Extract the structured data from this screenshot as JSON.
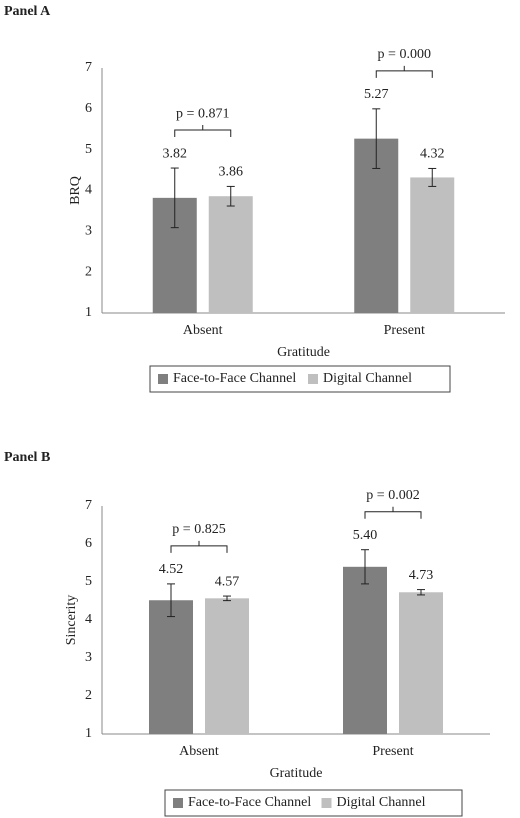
{
  "chart_data": [
    {
      "type": "bar",
      "title": "Panel A",
      "x_label": "Gratitude",
      "y_label": "BRQ",
      "categories": [
        "Absent",
        "Present"
      ],
      "series": [
        {
          "name": "Face-to-Face Channel",
          "color": "#7f7f7f",
          "values": [
            3.82,
            5.27
          ],
          "value_labels": [
            "3.82",
            "5.27"
          ],
          "errors": [
            0.73,
            0.73
          ]
        },
        {
          "name": "Digital Channel",
          "color": "#bfbfbf",
          "values": [
            3.86,
            4.32
          ],
          "value_labels": [
            "3.86",
            "4.32"
          ],
          "errors": [
            0.24,
            0.22
          ]
        }
      ],
      "annotations": [
        "p = 0.871",
        "p = 0.000"
      ],
      "ylim": [
        1,
        7
      ],
      "yticks": [
        1,
        2,
        3,
        4,
        5,
        6,
        7
      ],
      "grid": false
    },
    {
      "type": "bar",
      "title": "Panel B",
      "x_label": "Gratitude",
      "y_label": "Sincerity",
      "categories": [
        "Absent",
        "Present"
      ],
      "series": [
        {
          "name": "Face-to-Face Channel",
          "color": "#7f7f7f",
          "values": [
            4.52,
            5.4
          ],
          "value_labels": [
            "4.52",
            "5.40"
          ],
          "errors": [
            0.43,
            0.45
          ]
        },
        {
          "name": "Digital Channel",
          "color": "#bfbfbf",
          "values": [
            4.57,
            4.73
          ],
          "value_labels": [
            "4.57",
            "4.73"
          ],
          "errors": [
            0.06,
            0.07
          ]
        }
      ],
      "annotations": [
        "p = 0.825",
        "p = 0.002"
      ],
      "ylim": [
        1,
        7
      ],
      "yticks": [
        1,
        2,
        3,
        4,
        5,
        6,
        7
      ],
      "grid": false
    }
  ]
}
